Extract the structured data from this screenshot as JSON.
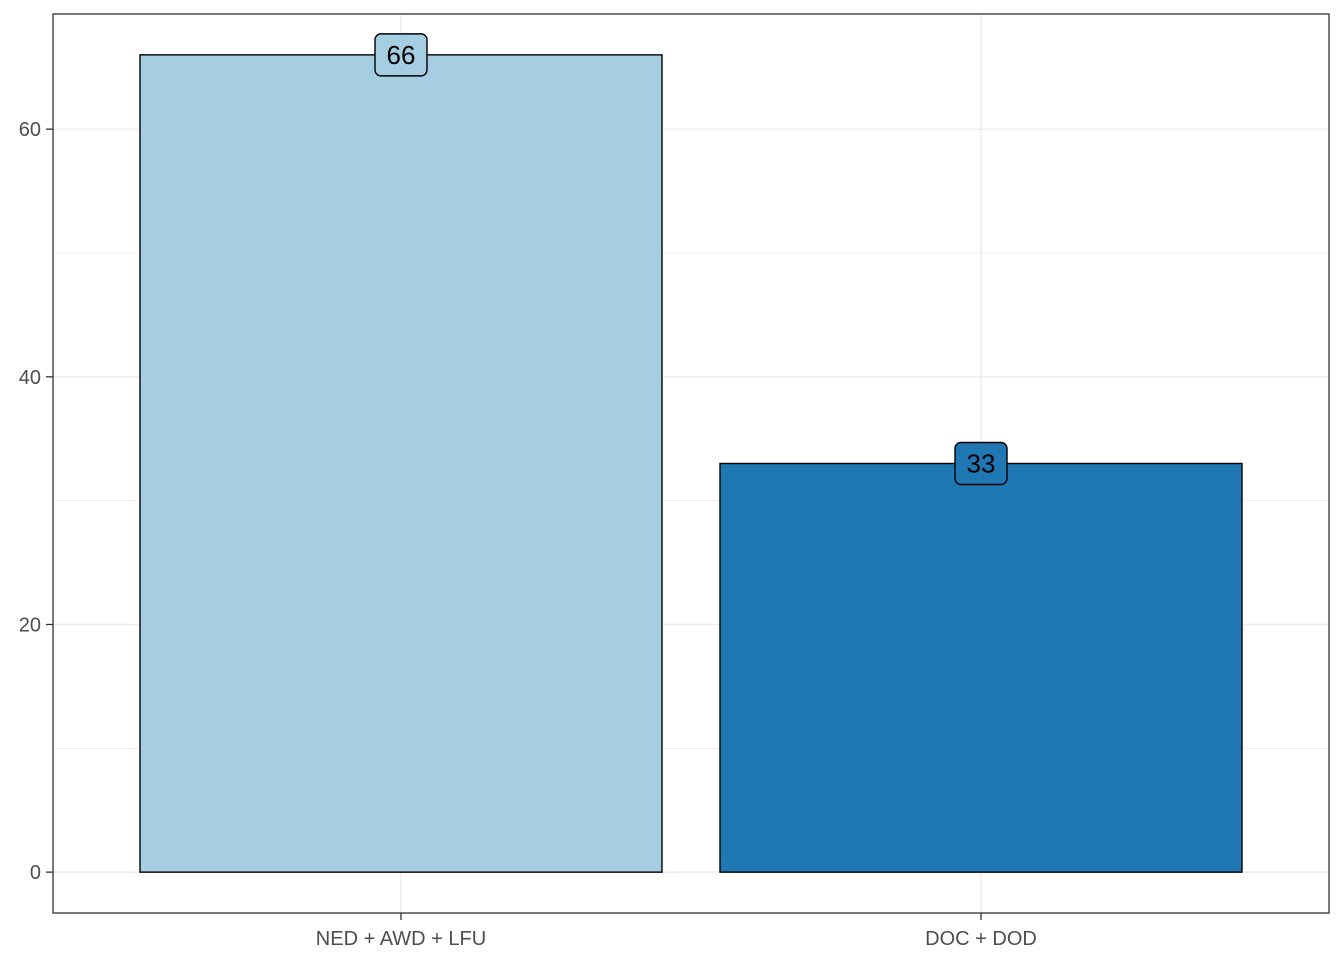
{
  "chart_data": {
    "type": "bar",
    "title": "",
    "xlabel": "",
    "ylabel": "",
    "categories": [
      "NED + AWD + LFU",
      "DOC + DOD"
    ],
    "values": [
      66,
      33
    ],
    "data_labels": [
      "66",
      "33"
    ],
    "colors": [
      "#a6cee3",
      "#1f78b4"
    ],
    "ylim": [
      -3.3,
      69.3
    ],
    "y_ticks": [
      0,
      20,
      40,
      60
    ],
    "y_tick_labels": [
      "0",
      "20",
      "40",
      "60"
    ],
    "grid": true,
    "legend": "none"
  }
}
